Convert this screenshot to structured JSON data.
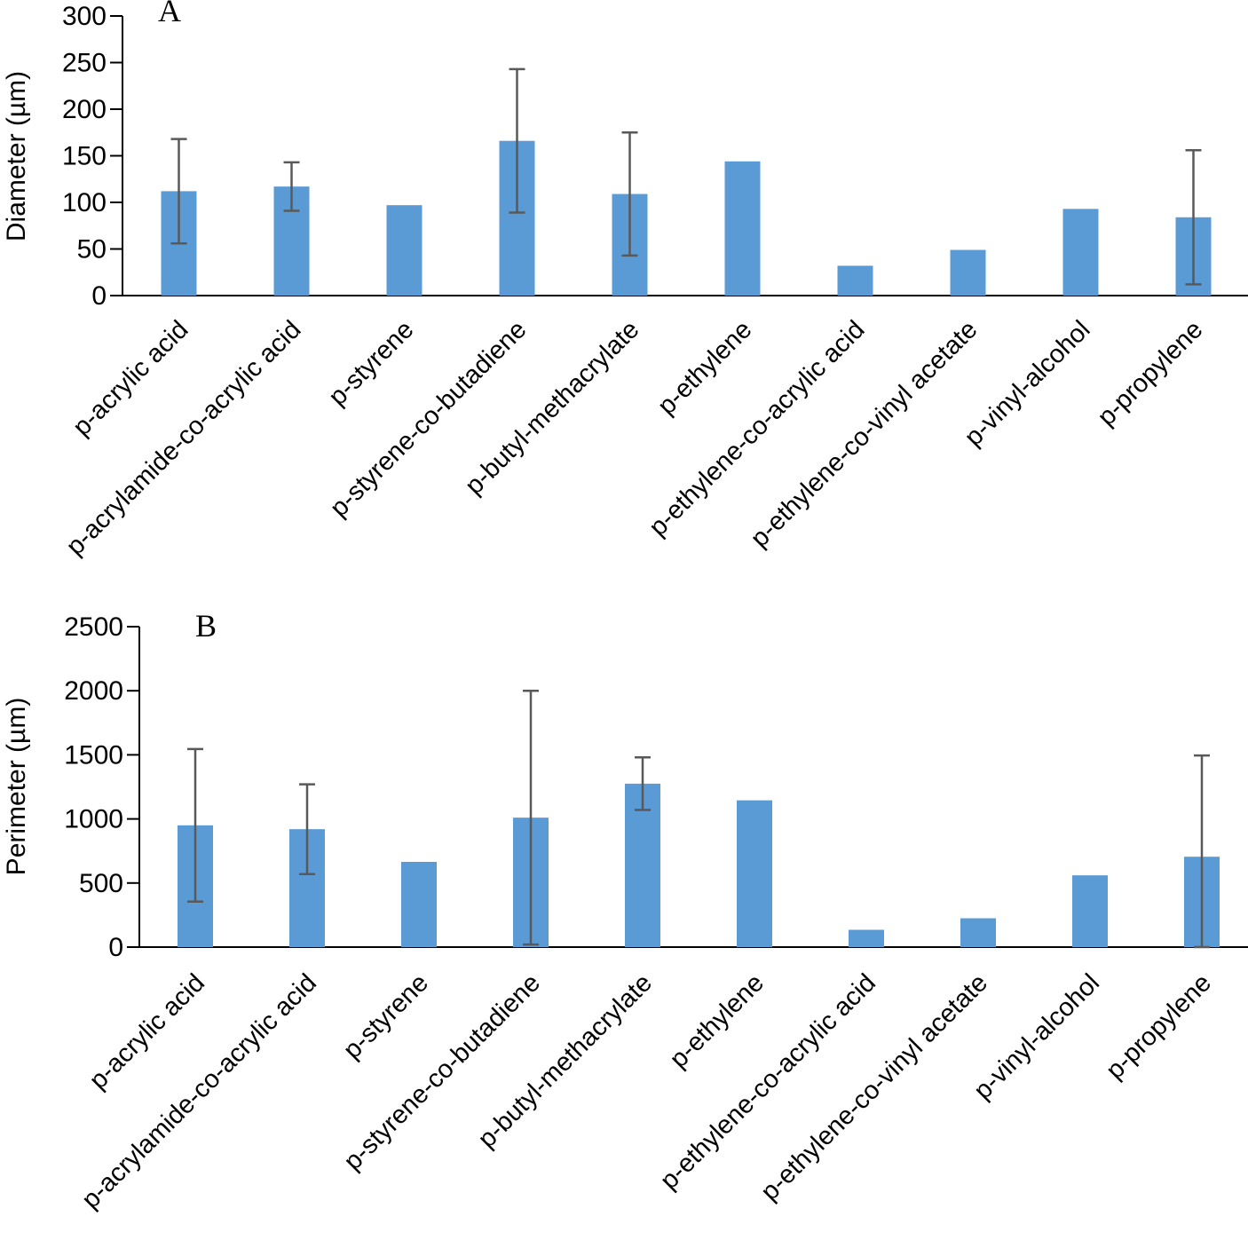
{
  "chart_data": [
    {
      "type": "bar",
      "panel_label": "A",
      "ylabel": "Diameter (µm)",
      "ylim": [
        0,
        300
      ],
      "yticks": [
        0,
        50,
        100,
        150,
        200,
        250,
        300
      ],
      "categories": [
        "p-acrylic acid",
        "p-acrylamide-co-acrylic acid",
        "p-styrene",
        "p-styrene-co-butadiene",
        "p-butyl-methacrylate",
        "p-ethylene",
        "p-ethylene-co-acrylic acid",
        "p-ethylene-co-vinyl acetate",
        "p-vinyl-alcohol",
        "p-propylene"
      ],
      "values": [
        112,
        117,
        97,
        166,
        109,
        144,
        32,
        49,
        93,
        84
      ],
      "error": [
        56,
        26,
        null,
        77,
        66,
        null,
        null,
        null,
        null,
        72
      ],
      "bar_color": "#5b9bd5",
      "error_color": "#595959"
    },
    {
      "type": "bar",
      "panel_label": "B",
      "ylabel": "Perimeter (µm)",
      "ylim": [
        0,
        2500
      ],
      "yticks": [
        0,
        500,
        1000,
        1500,
        2000,
        2500
      ],
      "categories": [
        "p-acrylic acid",
        "p-acrylamide-co-acrylic acid",
        "p-styrene",
        "p-styrene-co-butadiene",
        "p-butyl-methacrylate",
        "p-ethylene",
        "p-ethylene-co-acrylic acid",
        "p-ethylene-co-vinyl acetate",
        "p-vinyl-alcohol",
        "p-propylene"
      ],
      "values": [
        950,
        920,
        665,
        1010,
        1275,
        1145,
        135,
        225,
        560,
        705
      ],
      "error": [
        595,
        350,
        null,
        990,
        205,
        null,
        null,
        null,
        null,
        790
      ],
      "bar_color": "#5b9bd5",
      "error_color": "#595959"
    }
  ]
}
